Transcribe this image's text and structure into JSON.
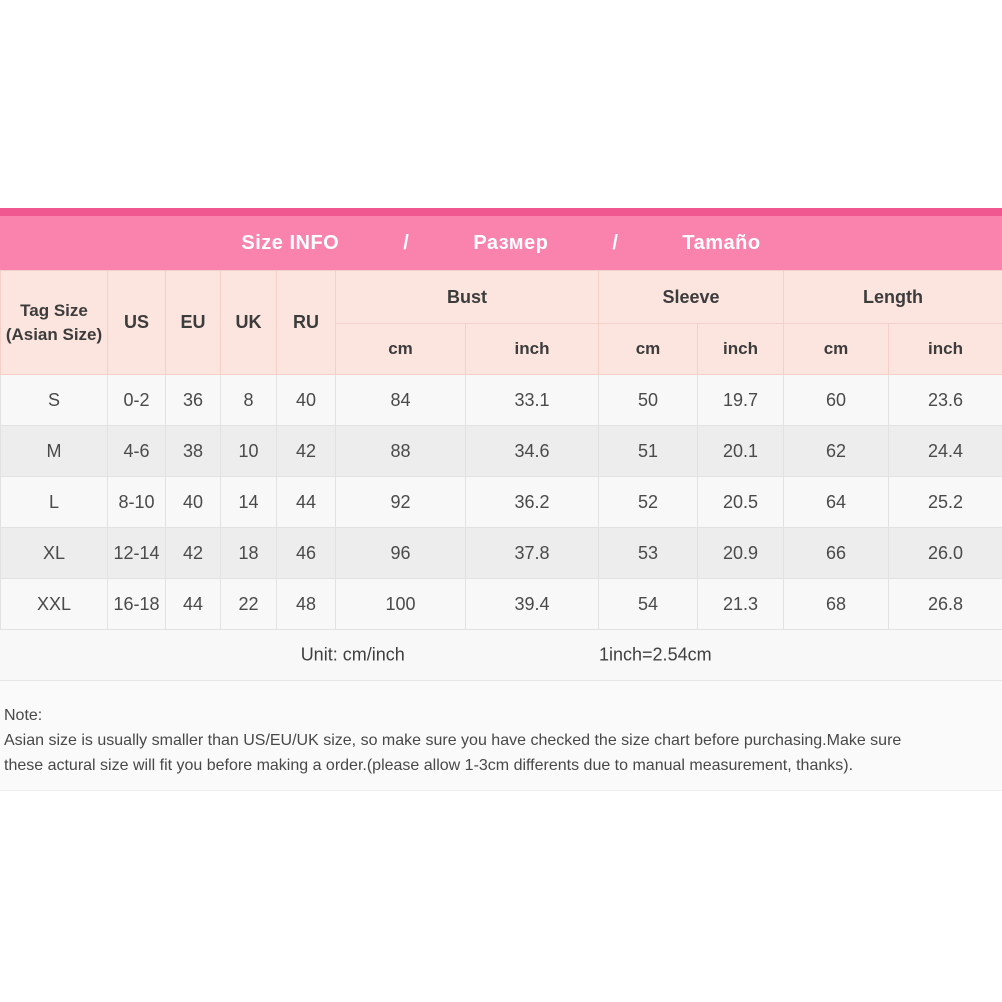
{
  "banner": {
    "segments": [
      "Size INFO",
      "/",
      "Размер",
      "/",
      "Tamaño"
    ],
    "bar_color": "#f983ad",
    "accent_color": "#f0568f"
  },
  "table": {
    "corner_header": "Tag Size\n(Asian Size)",
    "size_system_headers": [
      "US",
      "EU",
      "UK",
      "RU"
    ],
    "measure_headers": [
      "Bust",
      "Sleeve",
      "Length"
    ],
    "unit_headers": [
      "cm",
      "inch",
      "cm",
      "inch",
      "cm",
      "inch"
    ],
    "rows": [
      [
        "S",
        "0-2",
        "36",
        "8",
        "40",
        "84",
        "33.1",
        "50",
        "19.7",
        "60",
        "23.6"
      ],
      [
        "M",
        "4-6",
        "38",
        "10",
        "42",
        "88",
        "34.6",
        "51",
        "20.1",
        "62",
        "24.4"
      ],
      [
        "L",
        "8-10",
        "40",
        "14",
        "44",
        "92",
        "36.2",
        "52",
        "20.5",
        "64",
        "25.2"
      ],
      [
        "XL",
        "12-14",
        "42",
        "18",
        "46",
        "96",
        "37.8",
        "53",
        "20.9",
        "66",
        "26.0"
      ],
      [
        "XXL",
        "16-18",
        "44",
        "22",
        "48",
        "100",
        "39.4",
        "54",
        "21.3",
        "68",
        "26.8"
      ]
    ],
    "footer": {
      "unit_label": "Unit: cm/inch",
      "conversion_label": "1inch=2.54cm"
    }
  },
  "note": {
    "heading": "Note:",
    "lines": [
      "Asian size is usually smaller than US/EU/UK size, so make sure you have checked the size chart before purchasing.Make sure",
      "these actural size will fit you before making a order.(please allow 1-3cm differents due to manual measurement, thanks)."
    ]
  },
  "colors": {
    "banner_pink": "#f983ad",
    "banner_accent_pink": "#f0568f",
    "header_peach": "#fce5de",
    "row_stripe_gray": "#ededed"
  }
}
